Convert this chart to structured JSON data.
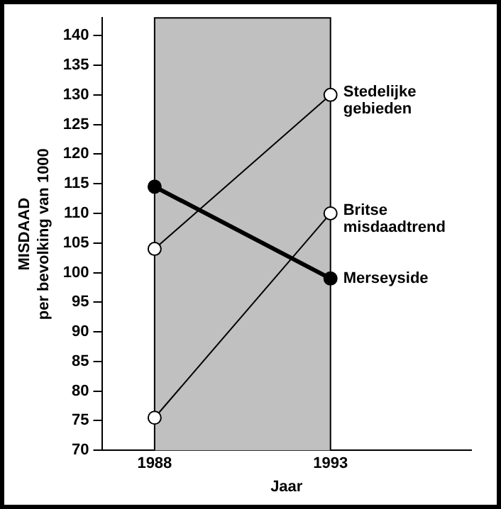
{
  "chart_data": {
    "type": "line",
    "xlabel": "Jaar",
    "ylabel": "MISDAAD\nper bevolking van 1000",
    "x": [
      1988,
      1993
    ],
    "series": [
      {
        "name": "Stedelijke gebieden",
        "color": "#000000",
        "values": [
          104,
          130
        ]
      },
      {
        "name": "Britse misdaadtrend",
        "color": "#000000",
        "values": [
          75.5,
          110
        ]
      },
      {
        "name": "Merseyside",
        "color": "#000000",
        "values": [
          114.5,
          99
        ]
      }
    ],
    "xlim": [
      1986.5,
      1997
    ],
    "xticks": [
      1988,
      1993
    ],
    "ylim": [
      70,
      143
    ],
    "yticks": [
      70,
      75,
      80,
      85,
      90,
      95,
      100,
      105,
      110,
      115,
      120,
      125,
      130,
      135,
      140
    ],
    "bands": [
      {
        "axis": "x",
        "from": 1988,
        "to": 1993,
        "color": "#c0c0c0"
      }
    ],
    "grid": false,
    "legend": false,
    "marker": "circle",
    "line_style": "solid"
  }
}
